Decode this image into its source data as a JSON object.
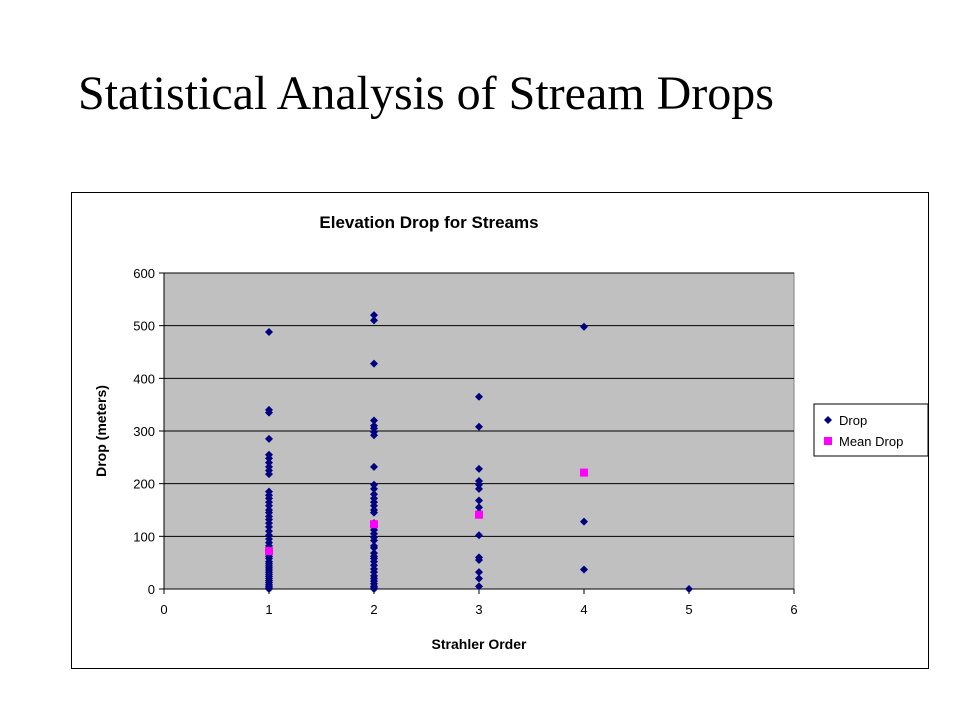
{
  "slide": {
    "title": "Statistical Analysis of Stream Drops"
  },
  "chart_data": {
    "type": "scatter",
    "title": "Elevation Drop for Streams",
    "xlabel": "Strahler Order",
    "ylabel": "Drop (meters)",
    "xlim": [
      0,
      6
    ],
    "ylim": [
      0,
      600
    ],
    "xticks": [
      0,
      1,
      2,
      3,
      4,
      5,
      6
    ],
    "yticks": [
      0,
      100,
      200,
      300,
      400,
      500,
      600
    ],
    "grid": "horizontal",
    "legend_position": "right",
    "plot_background": "#c0c0c0",
    "series": [
      {
        "name": "Drop",
        "color": "#000080",
        "marker": "diamond",
        "points": [
          [
            1,
            488
          ],
          [
            1,
            340
          ],
          [
            1,
            335
          ],
          [
            1,
            285
          ],
          [
            1,
            255
          ],
          [
            1,
            248
          ],
          [
            1,
            240
          ],
          [
            1,
            232
          ],
          [
            1,
            225
          ],
          [
            1,
            218
          ],
          [
            1,
            185
          ],
          [
            1,
            178
          ],
          [
            1,
            172
          ],
          [
            1,
            165
          ],
          [
            1,
            158
          ],
          [
            1,
            150
          ],
          [
            1,
            145
          ],
          [
            1,
            138
          ],
          [
            1,
            132
          ],
          [
            1,
            125
          ],
          [
            1,
            118
          ],
          [
            1,
            110
          ],
          [
            1,
            102
          ],
          [
            1,
            95
          ],
          [
            1,
            88
          ],
          [
            1,
            82
          ],
          [
            1,
            75
          ],
          [
            1,
            68
          ],
          [
            1,
            62
          ],
          [
            1,
            58
          ],
          [
            1,
            52
          ],
          [
            1,
            48
          ],
          [
            1,
            44
          ],
          [
            1,
            40
          ],
          [
            1,
            36
          ],
          [
            1,
            32
          ],
          [
            1,
            28
          ],
          [
            1,
            24
          ],
          [
            1,
            20
          ],
          [
            1,
            16
          ],
          [
            1,
            12
          ],
          [
            1,
            8
          ],
          [
            1,
            5
          ],
          [
            1,
            2
          ],
          [
            1,
            0
          ],
          [
            2,
            520
          ],
          [
            2,
            510
          ],
          [
            2,
            428
          ],
          [
            2,
            320
          ],
          [
            2,
            310
          ],
          [
            2,
            305
          ],
          [
            2,
            298
          ],
          [
            2,
            292
          ],
          [
            2,
            232
          ],
          [
            2,
            198
          ],
          [
            2,
            190
          ],
          [
            2,
            180
          ],
          [
            2,
            172
          ],
          [
            2,
            165
          ],
          [
            2,
            158
          ],
          [
            2,
            150
          ],
          [
            2,
            145
          ],
          [
            2,
            125
          ],
          [
            2,
            118
          ],
          [
            2,
            112
          ],
          [
            2,
            105
          ],
          [
            2,
            98
          ],
          [
            2,
            92
          ],
          [
            2,
            82
          ],
          [
            2,
            78
          ],
          [
            2,
            68
          ],
          [
            2,
            62
          ],
          [
            2,
            58
          ],
          [
            2,
            52
          ],
          [
            2,
            45
          ],
          [
            2,
            38
          ],
          [
            2,
            32
          ],
          [
            2,
            25
          ],
          [
            2,
            20
          ],
          [
            2,
            15
          ],
          [
            2,
            10
          ],
          [
            2,
            5
          ],
          [
            2,
            2
          ],
          [
            2,
            0
          ],
          [
            3,
            365
          ],
          [
            3,
            308
          ],
          [
            3,
            228
          ],
          [
            3,
            205
          ],
          [
            3,
            198
          ],
          [
            3,
            190
          ],
          [
            3,
            168
          ],
          [
            3,
            155
          ],
          [
            3,
            145
          ],
          [
            3,
            102
          ],
          [
            3,
            60
          ],
          [
            3,
            55
          ],
          [
            3,
            32
          ],
          [
            3,
            20
          ],
          [
            3,
            5
          ],
          [
            4,
            498
          ],
          [
            4,
            128
          ],
          [
            4,
            37
          ],
          [
            5,
            0
          ]
        ]
      },
      {
        "name": "Mean Drop",
        "color": "#ff00ff",
        "marker": "square",
        "points": [
          [
            1,
            72
          ],
          [
            2,
            123
          ],
          [
            3,
            141
          ],
          [
            4,
            221
          ]
        ]
      }
    ]
  }
}
